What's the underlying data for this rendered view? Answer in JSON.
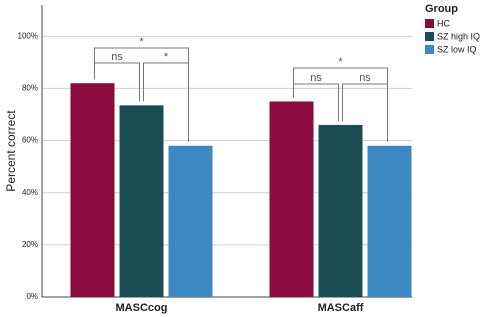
{
  "chart_data": {
    "type": "bar",
    "categories": [
      "MASCcog",
      "MASCaff"
    ],
    "series": [
      {
        "name": "HC",
        "color": "#8c0b3f",
        "values": [
          82,
          75
        ]
      },
      {
        "name": "SZ high IQ",
        "color": "#1b4c53",
        "values": [
          73.5,
          66
        ]
      },
      {
        "name": "SZ low IQ",
        "color": "#3b88c2",
        "values": [
          58,
          58
        ]
      }
    ],
    "y_label": "Percent correct",
    "legend_title": "Group",
    "legend_position": "right",
    "ylim": [
      0,
      112
    ],
    "yticks": [
      {
        "value": 0,
        "label": "0%"
      },
      {
        "value": 20,
        "label": "20%"
      },
      {
        "value": 40,
        "label": "40%"
      },
      {
        "value": 60,
        "label": "60%"
      },
      {
        "value": 80,
        "label": "80%"
      },
      {
        "value": 100,
        "label": "100%"
      }
    ],
    "grid": true,
    "annotations": [
      "*",
      "ns",
      "*",
      "*",
      "ns",
      "ns"
    ]
  }
}
